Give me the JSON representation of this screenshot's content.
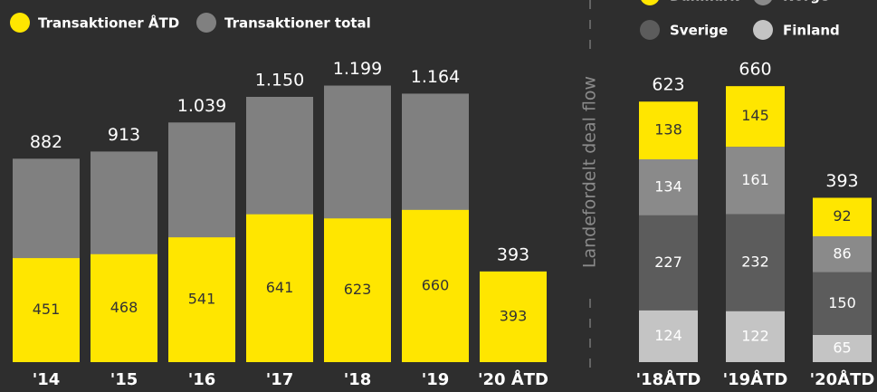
{
  "chart_data": [
    {
      "type": "bar_overlap",
      "categories": [
        "'14",
        "'15",
        "'16",
        "'17",
        "'18",
        "'19",
        "'20 ÅTD"
      ],
      "series": [
        {
          "name": "Transaktioner ÅTD",
          "color": "#ffe600",
          "values": [
            451,
            468,
            541,
            641,
            623,
            660,
            393
          ]
        },
        {
          "name": "Transaktioner total",
          "color": "#808080",
          "values": [
            882,
            913,
            1039,
            1150,
            1199,
            1164,
            393
          ],
          "value_labels": [
            "882",
            "913",
            "1.039",
            "1.150",
            "1.199",
            "1.164",
            "393"
          ]
        }
      ],
      "ylim": [
        0,
        1570
      ]
    },
    {
      "type": "stacked_bar",
      "title": "Landefordelt deal flow",
      "categories": [
        "'18ÅTD",
        "'19ÅTD",
        "'20ÅTD"
      ],
      "series": [
        {
          "name": "Danmark",
          "color": "#ffe600",
          "values": [
            138,
            145,
            92
          ]
        },
        {
          "name": "Norge",
          "color": "#8a8a8a",
          "values": [
            134,
            161,
            86
          ]
        },
        {
          "name": "Sverige",
          "color": "#5c5c5c",
          "values": [
            227,
            232,
            150
          ]
        },
        {
          "name": "Finland",
          "color": "#c4c4c4",
          "values": [
            124,
            122,
            65
          ]
        }
      ],
      "totals": [
        623,
        660,
        393
      ],
      "ylim": [
        0,
        866
      ]
    }
  ]
}
